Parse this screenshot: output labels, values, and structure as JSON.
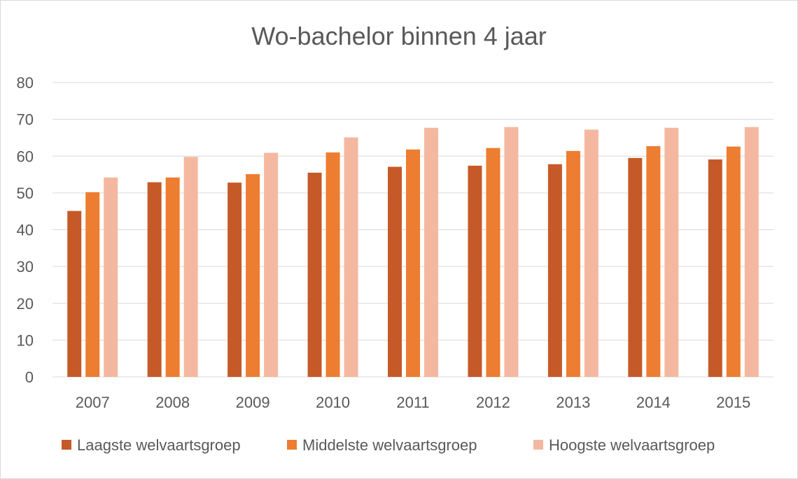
{
  "chart_data": {
    "type": "bar",
    "title": "Wo-bachelor binnen 4 jaar",
    "xlabel": "",
    "ylabel": "",
    "categories": [
      "2007",
      "2008",
      "2009",
      "2010",
      "2011",
      "2012",
      "2013",
      "2014",
      "2015"
    ],
    "series": [
      {
        "name": "Laagste welvaartsgroep",
        "color": "#c55a28",
        "values": [
          45.1,
          52.9,
          52.8,
          55.5,
          57.1,
          57.4,
          57.8,
          59.5,
          59.1
        ]
      },
      {
        "name": "Middelste welvaartsgroep",
        "color": "#ed7d31",
        "values": [
          50.2,
          54.2,
          55.1,
          61.0,
          61.8,
          62.2,
          61.4,
          62.7,
          62.6
        ]
      },
      {
        "name": "Hoogste welvaartsgroep",
        "color": "#f4b8a0",
        "values": [
          54.2,
          59.8,
          60.9,
          65.1,
          67.7,
          67.9,
          67.2,
          67.7,
          67.9
        ]
      }
    ],
    "ylim": [
      0,
      80
    ],
    "yticks": [
      0,
      10,
      20,
      30,
      40,
      50,
      60,
      70,
      80
    ],
    "grid": true,
    "legend": "bottom"
  }
}
